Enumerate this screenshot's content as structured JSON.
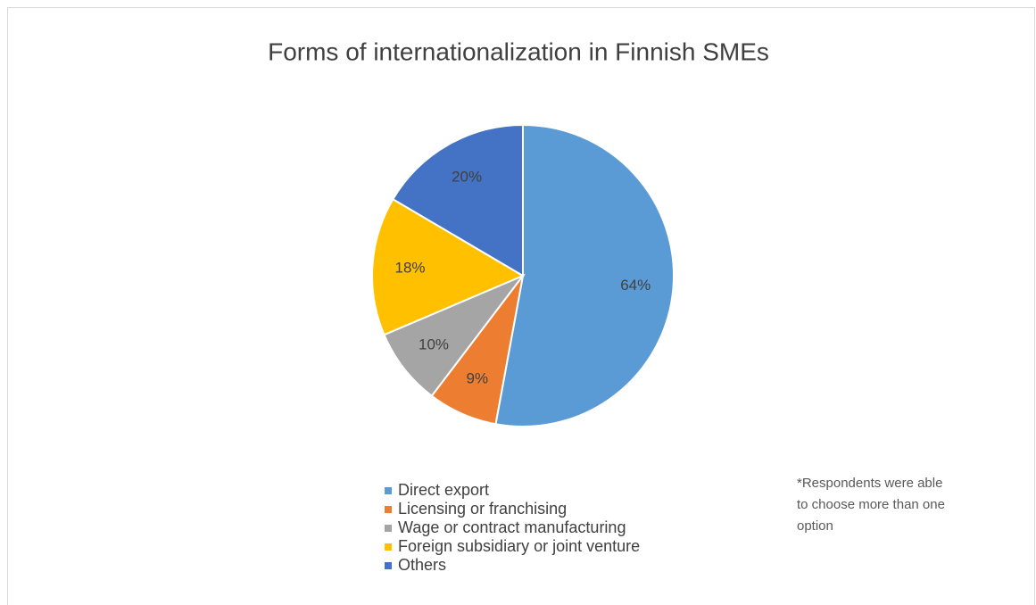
{
  "chart_data": {
    "type": "pie",
    "title": "Forms of internationalization in Finnish SMEs",
    "categories": [
      "Direct export",
      "Licensing or franchising",
      "Wage or contract manufacturing",
      "Foreign subsidiary or joint venture",
      "Others"
    ],
    "values": [
      64,
      9,
      10,
      18,
      20
    ],
    "value_labels": [
      "64%",
      "9%",
      "10%",
      "18%",
      "20%"
    ],
    "colors": [
      "#5b9bd5",
      "#ed7d31",
      "#a5a5a5",
      "#ffc000",
      "#4472c4"
    ],
    "legend": "bottom",
    "note": "*Respondents were able to choose more than one option"
  }
}
